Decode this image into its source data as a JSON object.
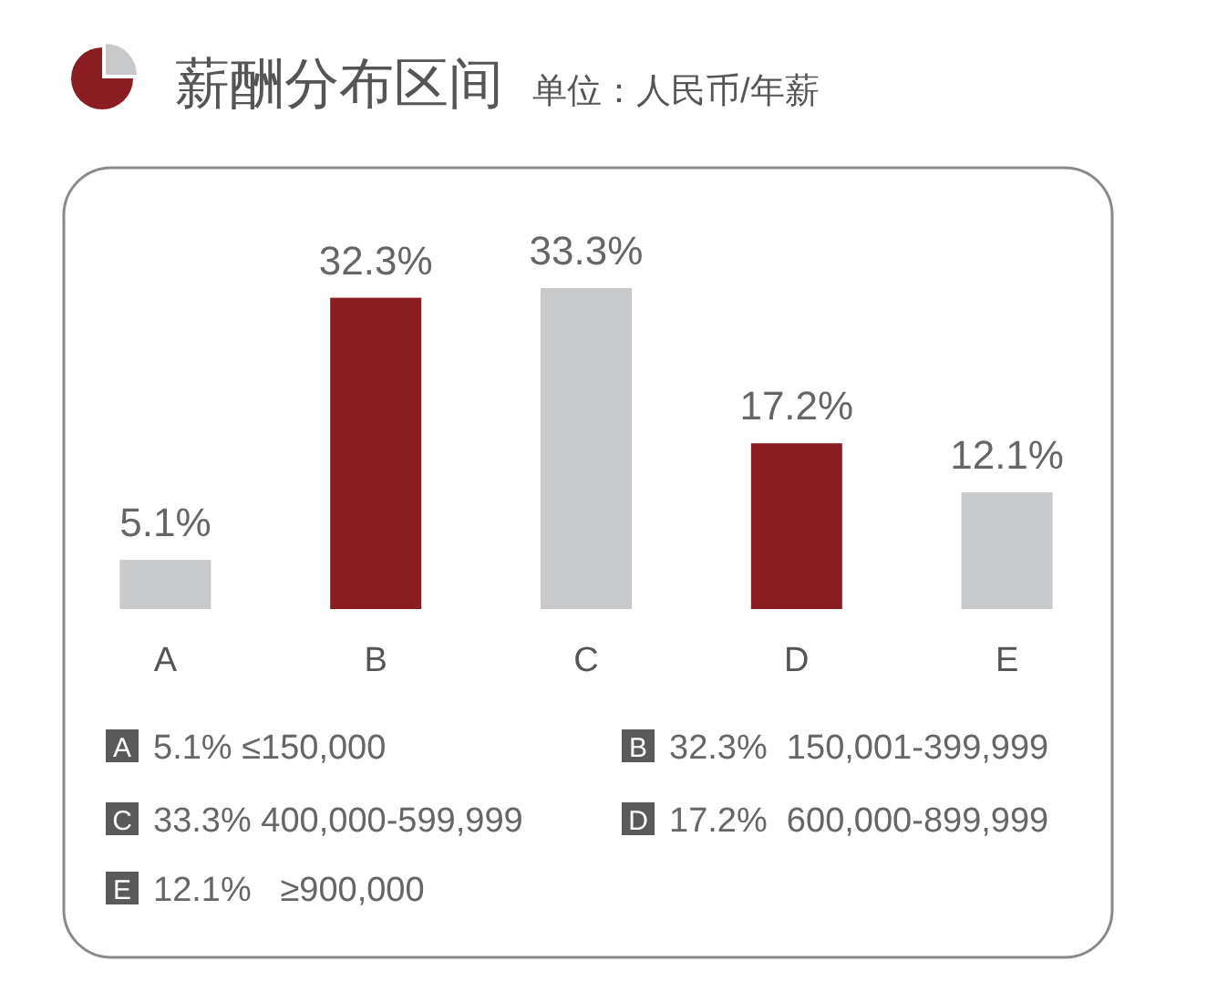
{
  "chart_data": {
    "type": "bar",
    "title": "薪酬分布区间",
    "subtitle": "单位：人民币/年薪",
    "categories": [
      "A",
      "B",
      "C",
      "D",
      "E"
    ],
    "values": [
      5.1,
      32.3,
      33.3,
      17.2,
      12.1
    ],
    "colors": [
      "#c8c9cb",
      "#8b1c22",
      "#c8c9cb",
      "#8b1c22",
      "#c8c9cb"
    ],
    "value_labels": [
      "5.1%",
      "32.3%",
      "33.3%",
      "17.2%",
      "12.1%"
    ],
    "annotations": [
      "5.1% ≤150,000",
      "32.3%  150,001-399,999",
      "33.3% 400,000-599,999",
      "17.2%  600,000-899,999",
      "12.1%   ≥900,000"
    ]
  }
}
